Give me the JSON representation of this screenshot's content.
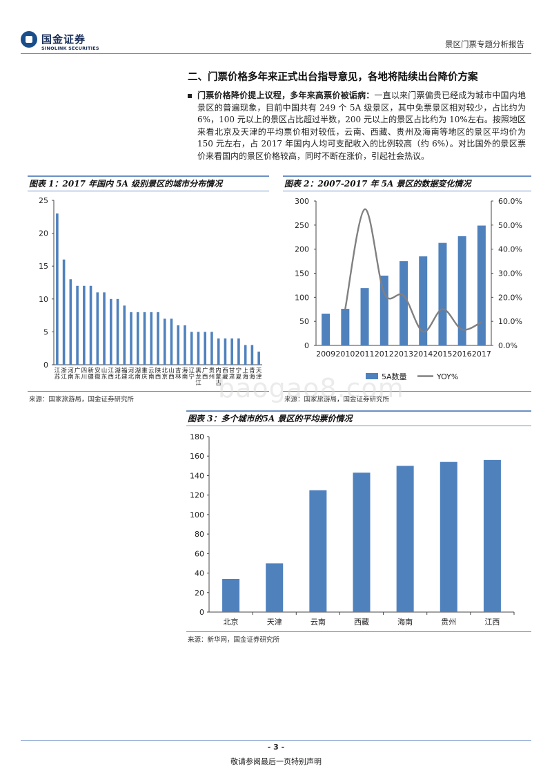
{
  "header": {
    "brand_cn": "国金证券",
    "brand_en": "SINOLINK SECURITIES",
    "report_title": "景区门票专题分析报告"
  },
  "section": {
    "title": "二、门票价格多年来正式出台指导意见，各地将陆续出台降价方案",
    "bullet_bold": "门票价格降价提上议程，多年来高票价被诟病：",
    "bullet_text": "一直以来门票偏贵已经成为城市中国内地景区的普遍现象，目前中国共有 249 个 5A 级景区，其中免票景区相对较少，占比约为 6%，100 元以上的景区占比超过半数，200 元以上的景区占比约为 10%左右。按照地区来看北京及天津的平均票价相对较低，云南、西藏、贵州及海南等地区的景区平均价为 150 元左右，占 2017 年国内人均可支配收入的比例较高（约 6%）。对比国外的景区票价来看国内的景区价格较高，同时不断在涨价，引起社会热议。"
  },
  "figures": {
    "fig1_title": "图表 1：2017 年国内 5A 级别景区的城市分布情况",
    "fig2_title": "图表 2：2007-2017 年 5A 景区的数据变化情况",
    "fig3_title": "图表 3：多个城市的5A 景区的平均票价情况",
    "source1": "来源：国家旅游局，国金证券研究所",
    "source2": "来源：国家旅游局，国金证券研究所",
    "source3": "来源：新华网，国金证券研究所"
  },
  "watermark": "baogao8.com",
  "footer": {
    "page": "- 3 -",
    "note": "敬请参阅最后一页特别声明"
  },
  "colors": {
    "bar": "#4f81bd",
    "line": "#808080",
    "rule": "#6a8fc4"
  },
  "chart_data": [
    {
      "id": "fig1",
      "type": "bar",
      "categories": [
        [
          "江",
          "苏"
        ],
        [
          "浙",
          "江"
        ],
        [
          "河",
          "南"
        ],
        [
          "广",
          "东"
        ],
        [
          "四",
          "川"
        ],
        [
          "新",
          "疆"
        ],
        [
          "安",
          "徽"
        ],
        [
          "山",
          "东"
        ],
        [
          "江",
          "西"
        ],
        [
          "湖",
          "北"
        ],
        [
          "福",
          "建"
        ],
        [
          "河",
          "北"
        ],
        [
          "湖",
          "南"
        ],
        [
          "重",
          "庆"
        ],
        [
          "云",
          "南"
        ],
        [
          "陕",
          "西"
        ],
        [
          "北",
          "京"
        ],
        [
          "山",
          "西"
        ],
        [
          "吉",
          "林"
        ],
        [
          "海",
          "南"
        ],
        [
          "辽",
          "宁"
        ],
        [
          "黑",
          "龙",
          "江"
        ],
        [
          "广",
          "西"
        ],
        [
          "贵",
          "州"
        ],
        [
          "内",
          "蒙",
          "古"
        ],
        [
          "西",
          "藏"
        ],
        [
          "甘",
          "肃"
        ],
        [
          "宁",
          "夏"
        ],
        [
          "上",
          "海"
        ],
        [
          "青",
          "海"
        ],
        [
          "天",
          "津"
        ]
      ],
      "values": [
        23,
        16,
        13,
        12,
        12,
        12,
        11,
        11,
        10,
        10,
        9,
        8,
        8,
        8,
        8,
        8,
        7,
        7,
        6,
        6,
        5,
        5,
        5,
        5,
        4,
        4,
        4,
        4,
        3,
        3,
        2
      ],
      "ylim": [
        0,
        25
      ],
      "yticks": [
        0,
        5,
        10,
        15,
        20,
        25
      ]
    },
    {
      "id": "fig2",
      "type": "bar",
      "categories": [
        "2009",
        "2010",
        "2011",
        "2012",
        "2013",
        "2014",
        "2015",
        "2016",
        "2017"
      ],
      "series": [
        {
          "name": "5A数量",
          "type": "bar",
          "axis": "left",
          "values": [
            66,
            76,
            119,
            145,
            175,
            185,
            213,
            227,
            249
          ]
        },
        {
          "name": "YOY%",
          "type": "line",
          "axis": "right",
          "values": [
            null,
            15.2,
            56.6,
            21.8,
            20.7,
            5.7,
            15.1,
            6.6,
            9.7
          ]
        }
      ],
      "ylim_left": [
        0,
        300
      ],
      "yticks_left": [
        0,
        50,
        100,
        150,
        200,
        250,
        300
      ],
      "ylim_right": [
        0,
        60
      ],
      "yticks_right": [
        "0.0%",
        "10.0%",
        "20.0%",
        "30.0%",
        "40.0%",
        "50.0%",
        "60.0%"
      ],
      "legend": [
        "5A数量",
        "YOY%"
      ]
    },
    {
      "id": "fig3",
      "type": "bar",
      "categories": [
        "北京",
        "天津",
        "云南",
        "西藏",
        "海南",
        "贵州",
        "江西"
      ],
      "values": [
        34,
        50,
        125,
        143,
        150,
        154,
        156
      ],
      "ylim": [
        0,
        180
      ],
      "yticks": [
        0,
        20,
        40,
        60,
        80,
        100,
        120,
        140,
        160,
        180
      ]
    }
  ]
}
